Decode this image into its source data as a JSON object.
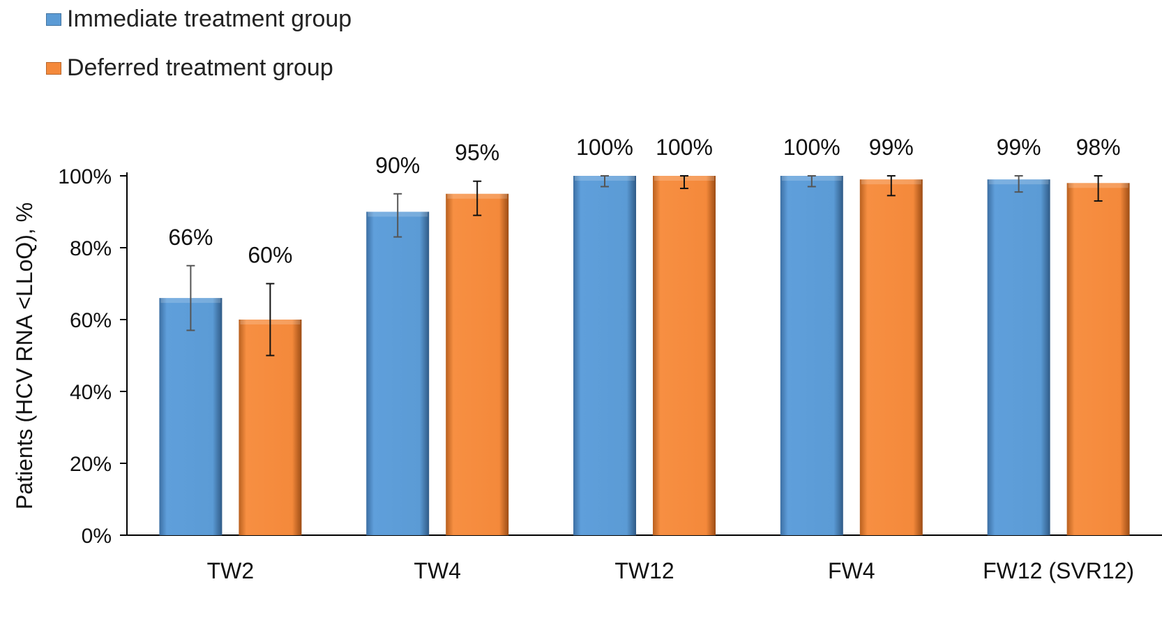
{
  "chart_data": {
    "type": "bar",
    "categories": [
      "TW2",
      "TW4",
      "TW12",
      "FW4",
      "FW12 (SVR12)"
    ],
    "series": [
      {
        "name": "Immediate treatment group",
        "color": "#5b9bd5",
        "values": [
          66,
          90,
          100,
          100,
          99
        ],
        "labels": [
          "66%",
          "90%",
          "100%",
          "100%",
          "99%"
        ],
        "error_low": [
          57,
          83,
          97,
          97,
          95.5
        ],
        "error_high": [
          75,
          95,
          100,
          100,
          100
        ]
      },
      {
        "name": "Deferred treatment group",
        "color": "#f4893b",
        "values": [
          60,
          95,
          100,
          99,
          98
        ],
        "labels": [
          "60%",
          "95%",
          "100%",
          "99%",
          "98%"
        ],
        "error_low": [
          50,
          89,
          96.5,
          94.5,
          93
        ],
        "error_high": [
          70,
          98.5,
          100,
          100,
          100
        ]
      }
    ],
    "ylabel": "Patients (HCV RNA <LLoQ), %",
    "xlabel": "",
    "ylim": [
      0,
      100
    ],
    "yticks": [
      0,
      20,
      40,
      60,
      80,
      100
    ],
    "ytick_labels": [
      "0%",
      "20%",
      "40%",
      "60%",
      "80%",
      "100%"
    ],
    "grid": false,
    "legend_position": "top-left"
  }
}
